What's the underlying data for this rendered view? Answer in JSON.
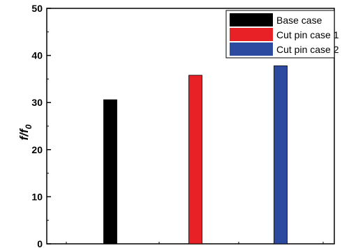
{
  "chart_data": {
    "type": "bar",
    "title": "",
    "xlabel": "",
    "ylabel": "f/f",
    "ylabel_subscript": "0",
    "ylim": [
      0,
      50
    ],
    "yticks": [
      0,
      10,
      20,
      30,
      40,
      50
    ],
    "grid": false,
    "legend_position": "top-right",
    "series": [
      {
        "name": "Base case",
        "value": 30.6,
        "color": "#000000"
      },
      {
        "name": "Cut pin case 1",
        "value": 35.8,
        "color": "#e82127"
      },
      {
        "name": "Cut pin case 2",
        "value": 37.8,
        "color": "#2b4aa0"
      }
    ]
  }
}
